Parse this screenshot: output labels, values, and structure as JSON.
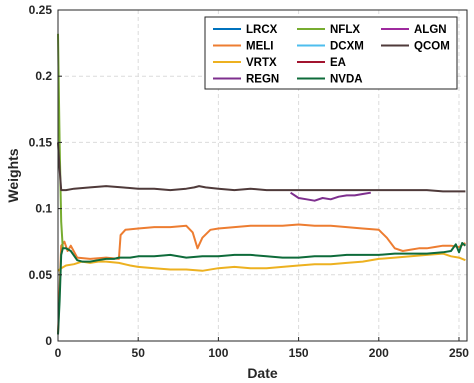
{
  "chart_data": {
    "type": "line",
    "xlabel": "Date",
    "ylabel": "Weights",
    "xlim": [
      0,
      255
    ],
    "ylim": [
      0,
      0.25
    ],
    "xticks": [
      0,
      50,
      100,
      150,
      200,
      250
    ],
    "yticks": [
      0,
      0.05,
      0.1,
      0.15,
      0.2,
      0.25
    ],
    "xtick_labels": [
      "0",
      "50",
      "100",
      "150",
      "200",
      "250"
    ],
    "ytick_labels": [
      "0",
      "0.05",
      "0.1",
      "0.15",
      "0.2",
      "0.25"
    ],
    "grid": true,
    "legend_position": "top-right",
    "legend_columns": 3,
    "series": [
      {
        "name": "LRCX",
        "color": "#0072BD",
        "x": [],
        "y": []
      },
      {
        "name": "MELI",
        "color": "#ED7D31",
        "x": [
          0,
          2,
          4,
          6,
          8,
          12,
          20,
          30,
          38,
          39,
          42,
          50,
          60,
          70,
          80,
          84,
          87,
          90,
          95,
          100,
          110,
          120,
          130,
          140,
          150,
          160,
          170,
          180,
          190,
          200,
          205,
          210,
          215,
          220,
          225,
          230,
          235,
          240,
          245,
          250,
          254
        ],
        "y": [
          0.005,
          0.072,
          0.075,
          0.068,
          0.072,
          0.063,
          0.062,
          0.063,
          0.062,
          0.08,
          0.084,
          0.085,
          0.086,
          0.086,
          0.087,
          0.082,
          0.07,
          0.078,
          0.084,
          0.085,
          0.086,
          0.087,
          0.087,
          0.087,
          0.088,
          0.087,
          0.087,
          0.086,
          0.085,
          0.084,
          0.078,
          0.07,
          0.068,
          0.069,
          0.07,
          0.07,
          0.071,
          0.072,
          0.072,
          0.071,
          0.074
        ]
      },
      {
        "name": "VRTX",
        "color": "#EDB120",
        "x": [
          0,
          2,
          5,
          10,
          15,
          20,
          25,
          30,
          38,
          45,
          50,
          60,
          70,
          80,
          90,
          100,
          110,
          120,
          130,
          140,
          150,
          160,
          170,
          180,
          190,
          200,
          210,
          220,
          230,
          240,
          245,
          250,
          254
        ],
        "y": [
          0.053,
          0.055,
          0.057,
          0.058,
          0.06,
          0.059,
          0.06,
          0.06,
          0.059,
          0.057,
          0.056,
          0.055,
          0.054,
          0.054,
          0.053,
          0.055,
          0.056,
          0.055,
          0.055,
          0.056,
          0.057,
          0.058,
          0.058,
          0.059,
          0.06,
          0.062,
          0.063,
          0.064,
          0.065,
          0.066,
          0.064,
          0.063,
          0.061
        ]
      },
      {
        "name": "REGN",
        "color": "#7E2F8E",
        "x": [
          145,
          150,
          155,
          160,
          165,
          170,
          175,
          180,
          185,
          190,
          195
        ],
        "y": [
          0.112,
          0.108,
          0.107,
          0.106,
          0.108,
          0.107,
          0.109,
          0.11,
          0.11,
          0.111,
          0.112
        ]
      },
      {
        "name": "NFLX",
        "color": "#77AC30",
        "x": [
          0,
          1,
          2,
          3
        ],
        "y": [
          0.232,
          0.15,
          0.09,
          0.07
        ]
      },
      {
        "name": "DCXM",
        "color": "#4DBEEE",
        "x": [],
        "y": []
      },
      {
        "name": "EA",
        "color": "#A2142F",
        "x": [],
        "y": []
      },
      {
        "name": "NVDA",
        "color": "#0E6B3A",
        "x": [
          0,
          1,
          2,
          3,
          5,
          8,
          12,
          15,
          20,
          25,
          30,
          35,
          38,
          45,
          50,
          60,
          70,
          80,
          90,
          100,
          110,
          120,
          130,
          140,
          150,
          160,
          170,
          180,
          190,
          200,
          210,
          220,
          230,
          240,
          245,
          248,
          250,
          252,
          254
        ],
        "y": [
          0.005,
          0.03,
          0.065,
          0.07,
          0.07,
          0.068,
          0.061,
          0.06,
          0.06,
          0.061,
          0.062,
          0.062,
          0.063,
          0.063,
          0.064,
          0.064,
          0.065,
          0.063,
          0.064,
          0.064,
          0.065,
          0.065,
          0.064,
          0.063,
          0.063,
          0.064,
          0.064,
          0.065,
          0.065,
          0.065,
          0.066,
          0.066,
          0.066,
          0.067,
          0.068,
          0.073,
          0.067,
          0.074,
          0.072
        ]
      },
      {
        "name": "ALGN",
        "color": "#9E2A9E",
        "x": [],
        "y": []
      },
      {
        "name": "QCOM",
        "color": "#4F3A3A",
        "x": [
          0,
          1,
          2,
          3,
          5,
          10,
          20,
          30,
          40,
          50,
          60,
          70,
          80,
          85,
          88,
          92,
          100,
          110,
          120,
          130,
          140,
          150,
          160,
          170,
          180,
          190,
          200,
          210,
          220,
          230,
          240,
          250,
          254
        ],
        "y": [
          0.15,
          0.13,
          0.114,
          0.114,
          0.114,
          0.115,
          0.116,
          0.117,
          0.116,
          0.115,
          0.115,
          0.114,
          0.115,
          0.116,
          0.117,
          0.116,
          0.115,
          0.114,
          0.115,
          0.114,
          0.114,
          0.114,
          0.114,
          0.114,
          0.114,
          0.114,
          0.114,
          0.114,
          0.114,
          0.114,
          0.113,
          0.113,
          0.113
        ]
      }
    ]
  }
}
